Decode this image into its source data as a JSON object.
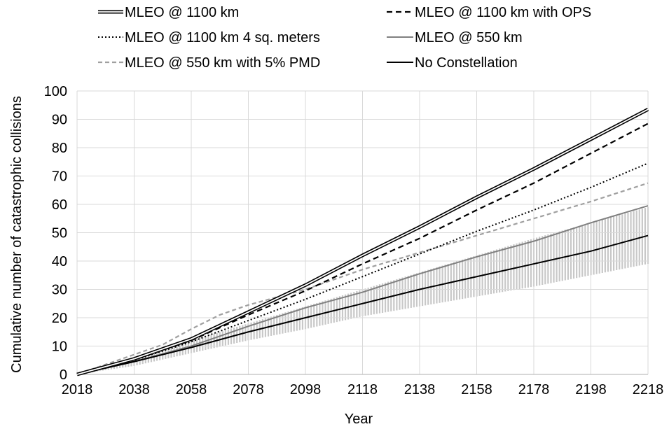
{
  "chart_data": {
    "type": "line",
    "xlabel": "Year",
    "ylabel": "Cumulative number of catastrophic collisions",
    "xlim": [
      2018,
      2218
    ],
    "ylim": [
      0,
      100
    ],
    "x_ticks": [
      2018,
      2038,
      2058,
      2078,
      2098,
      2118,
      2138,
      2158,
      2178,
      2198,
      2218
    ],
    "y_ticks": [
      0,
      10,
      20,
      30,
      40,
      50,
      60,
      70,
      80,
      90,
      100
    ],
    "grid": true,
    "legend_position": "top",
    "series": [
      {
        "name": "MLEO @ 1100 km",
        "style": "double",
        "color": "#000000",
        "x": [
          2018,
          2038,
          2058,
          2078,
          2098,
          2118,
          2138,
          2158,
          2178,
          2198,
          2218
        ],
        "y": [
          0,
          5.5,
          12.5,
          22,
          31.5,
          42,
          52,
          62.5,
          72.5,
          83,
          93.5
        ]
      },
      {
        "name": "MLEO @ 1100 km with OPS",
        "style": "dashed",
        "color": "#000000",
        "x": [
          2018,
          2038,
          2058,
          2078,
          2098,
          2118,
          2138,
          2158,
          2178,
          2198,
          2218
        ],
        "y": [
          0,
          5.2,
          12,
          21,
          29.5,
          39,
          48,
          58,
          67.5,
          78,
          88.5
        ]
      },
      {
        "name": "MLEO @ 1100 km 4 sq. meters",
        "style": "dotted",
        "color": "#000000",
        "x": [
          2018,
          2038,
          2058,
          2078,
          2098,
          2118,
          2138,
          2158,
          2178,
          2198,
          2218
        ],
        "y": [
          0,
          5,
          11.5,
          19,
          26.5,
          34.5,
          42.5,
          50.5,
          58,
          66,
          74.5
        ]
      },
      {
        "name": "MLEO @ 550 km",
        "style": "solid",
        "color": "#808080",
        "x": [
          2018,
          2038,
          2058,
          2078,
          2098,
          2118,
          2138,
          2158,
          2178,
          2198,
          2218
        ],
        "y": [
          0,
          4.5,
          10,
          17,
          23.5,
          29,
          35.5,
          41.5,
          47,
          53.5,
          59.5
        ]
      },
      {
        "name": "MLEO @ 550 km with 5% PMD",
        "style": "dashed",
        "color": "#a0a0a0",
        "x": [
          2018,
          2028,
          2038,
          2048,
          2058,
          2068,
          2078,
          2098,
          2118,
          2138,
          2158,
          2178,
          2198,
          2218
        ],
        "y": [
          0,
          3.5,
          7,
          10.5,
          16,
          21,
          24.5,
          30,
          37,
          43,
          49,
          55,
          61,
          67.5
        ]
      },
      {
        "name": "No Constellation",
        "style": "solid",
        "color": "#000000",
        "x": [
          2018,
          2038,
          2058,
          2078,
          2098,
          2118,
          2138,
          2158,
          2178,
          2198,
          2218
        ],
        "y": [
          0,
          4.5,
          9.5,
          15,
          20,
          25,
          30,
          34.5,
          39,
          43.5,
          49
        ]
      }
    ],
    "band": {
      "color": "#c8c8c8",
      "x": [
        2018,
        2038,
        2058,
        2078,
        2098,
        2118,
        2138,
        2158,
        2178,
        2198,
        2218
      ],
      "lower": [
        0,
        3,
        7.5,
        12,
        16,
        20.5,
        24,
        27.5,
        31,
        35,
        39
      ],
      "upper": [
        0,
        5.5,
        12,
        18,
        24,
        30,
        36,
        42,
        48,
        53.5,
        59
      ]
    }
  }
}
